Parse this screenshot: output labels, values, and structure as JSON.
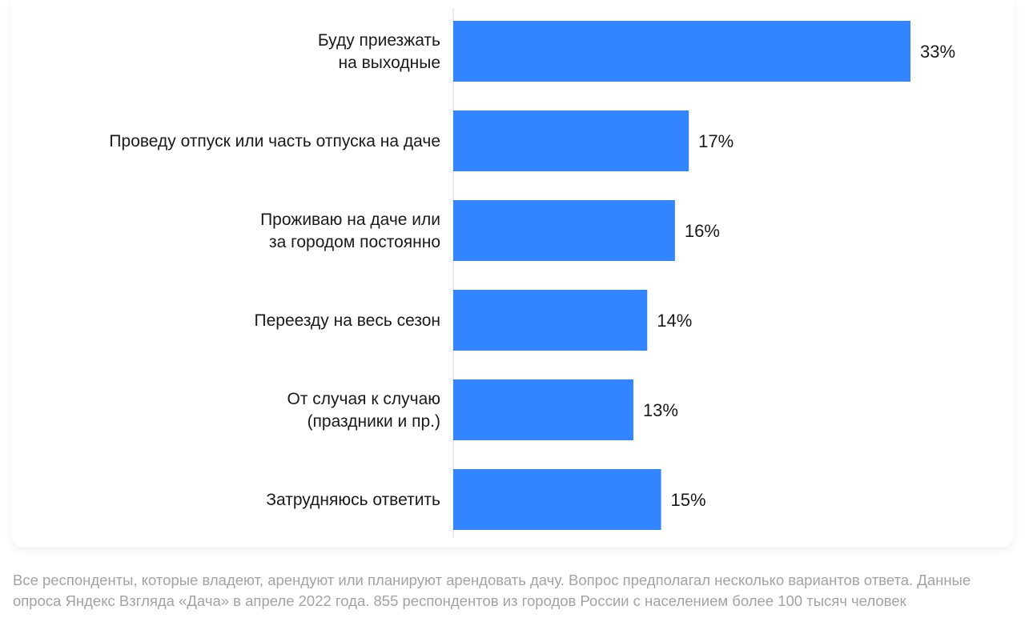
{
  "chart_data": {
    "type": "bar",
    "orientation": "horizontal",
    "categories": [
      [
        "Буду приезжать",
        "на выходные"
      ],
      [
        "Проведу отпуск или часть отпуска на даче"
      ],
      [
        "Проживаю на даче или",
        "за городом постоянно"
      ],
      [
        "Переезду на весь сезон"
      ],
      [
        "От случая к случаю",
        "(праздники и пр.)"
      ],
      [
        "Затрудняюсь ответить"
      ]
    ],
    "values": [
      33,
      17,
      16,
      14,
      13,
      15
    ],
    "value_labels": [
      "33%",
      "17%",
      "16%",
      "14%",
      "13%",
      "15%"
    ],
    "unit": "%",
    "xlim": [
      0,
      33
    ],
    "bar_color": "#3385ff",
    "axis_color": "#e3e3e3",
    "grid": false
  },
  "footnote": "Все респонденты, которые владеют, арендуют или планируют арендовать дачу. Вопрос предполагал несколько вариантов ответа. Данные опроса Яндекс Взгляда «Дача» в апреле 2022 года. 855 респондентов из городов России с населением более 100 тысяч человек"
}
